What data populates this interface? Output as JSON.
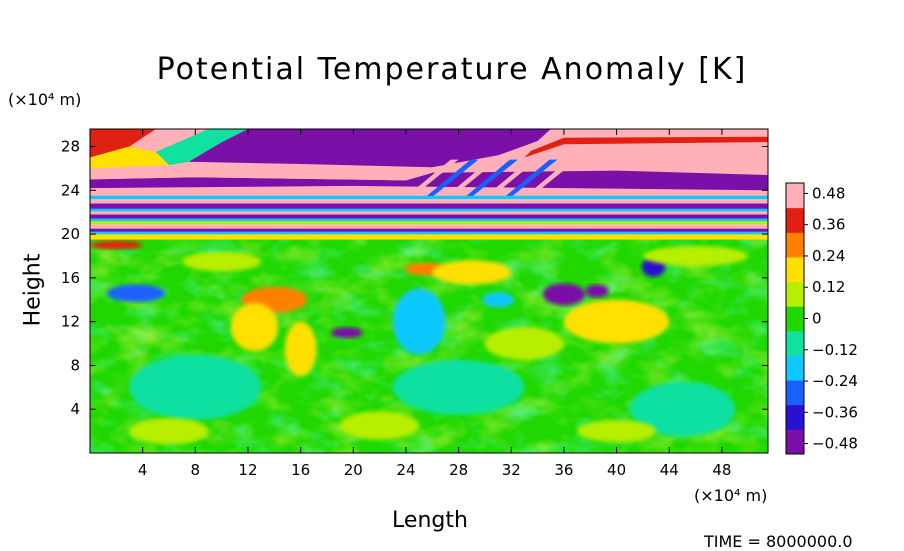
{
  "chart_data": {
    "type": "heatmap",
    "title": "Potential Temperature Anomaly [K]",
    "xlabel": "Length",
    "ylabel": "Height",
    "x_unit": "(×10⁴ m)",
    "y_unit": "(×10⁴ m)",
    "xlim": [
      0,
      51.5
    ],
    "ylim": [
      0,
      29.6
    ],
    "x_ticks": [
      "4",
      "8",
      "12",
      "16",
      "20",
      "24",
      "28",
      "32",
      "36",
      "40",
      "44",
      "48"
    ],
    "y_ticks": [
      "4",
      "8",
      "12",
      "16",
      "20",
      "24",
      "28"
    ],
    "colorbar": {
      "vmin": -0.52,
      "vmax": 0.52,
      "tick_values": [
        0.48,
        0.36,
        0.24,
        0.12,
        0,
        -0.12,
        -0.24,
        -0.36,
        -0.48
      ],
      "tick_labels": [
        "0.48",
        "0.36",
        "0.24",
        "0.12",
        "0",
        "−0.12",
        "−0.24",
        "−0.36",
        "−0.48"
      ],
      "colors": [
        "#7a10a8",
        "#2a10d0",
        "#1a60ff",
        "#10c8ff",
        "#10e0a0",
        "#20d800",
        "#b8ee00",
        "#ffe000",
        "#ff8000",
        "#e02010",
        "#ffb0b8"
      ]
    },
    "features": [
      {
        "desc": "upper negative band",
        "x": [
          7,
          35
        ],
        "y": [
          26,
          29.6
        ],
        "value": -0.5
      },
      {
        "desc": "upper-right positive band",
        "x": [
          34,
          51.5
        ],
        "y": [
          26,
          29.6
        ],
        "value": 0.5
      },
      {
        "desc": "positive layer",
        "x": [
          0,
          51.5
        ],
        "y": [
          23,
          25.5
        ],
        "value": 0.5
      },
      {
        "desc": "negative layer",
        "x": [
          24,
          51.5
        ],
        "y": [
          23.5,
          25
        ],
        "value": -0.5
      },
      {
        "desc": "stratified layers",
        "x": [
          0,
          51.5
        ],
        "y": [
          19.5,
          23
        ],
        "value": 0
      },
      {
        "desc": "lower domain background",
        "x": [
          0,
          51.5
        ],
        "y": [
          0,
          19.5
        ],
        "value": 0.05
      }
    ]
  },
  "footer_text": "TIME = 8000000.0"
}
